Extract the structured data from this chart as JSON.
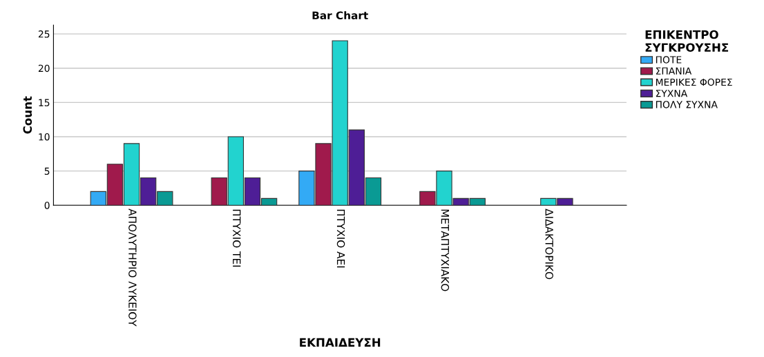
{
  "chart_data": {
    "type": "bar",
    "title": "Bar Chart",
    "xlabel": "ΕΚΠΑΙΔΕΥΣΗ",
    "ylabel": "Count",
    "legend_title": "ΕΠΙΚΕΝΤΡΟ\nΣΥΓΚΡΟΥΣΗΣ",
    "categories": [
      "ΑΠΟΛΥΤΗΡΙΟ ΛΥΚΕΙΟΥ",
      "ΠΤΥΧΙΟ ΤΕΙ",
      "ΠΤΥΧΙΟ ΑΕΙ",
      "ΜΕΤΑΠΤΥΧΙΑΚΟ",
      "ΔΙΔΑΚΤΟΡΙΚΟ"
    ],
    "series": [
      {
        "name": "ΠΟΤΕ",
        "color": "#33aaf5",
        "values": [
          2,
          null,
          5,
          null,
          null
        ]
      },
      {
        "name": "ΣΠΑΝΙΑ",
        "color": "#a01a4c",
        "values": [
          6,
          4,
          9,
          2,
          null
        ]
      },
      {
        "name": "ΜΕΡΙΚΕΣ ΦΟΡΕΣ",
        "color": "#22d3cf",
        "values": [
          9,
          10,
          24,
          5,
          1
        ]
      },
      {
        "name": "ΣΥΧΝΑ",
        "color": "#4e1e96",
        "values": [
          4,
          4,
          11,
          1,
          1
        ]
      },
      {
        "name": "ΠΟΛΥ ΣΥΧΝΑ",
        "color": "#0a9a94",
        "values": [
          2,
          1,
          4,
          1,
          null
        ]
      }
    ],
    "ylim": [
      0,
      26.3
    ],
    "yticks": [
      0,
      5,
      10,
      15,
      20,
      25
    ],
    "grid": "y",
    "legend": "right"
  }
}
